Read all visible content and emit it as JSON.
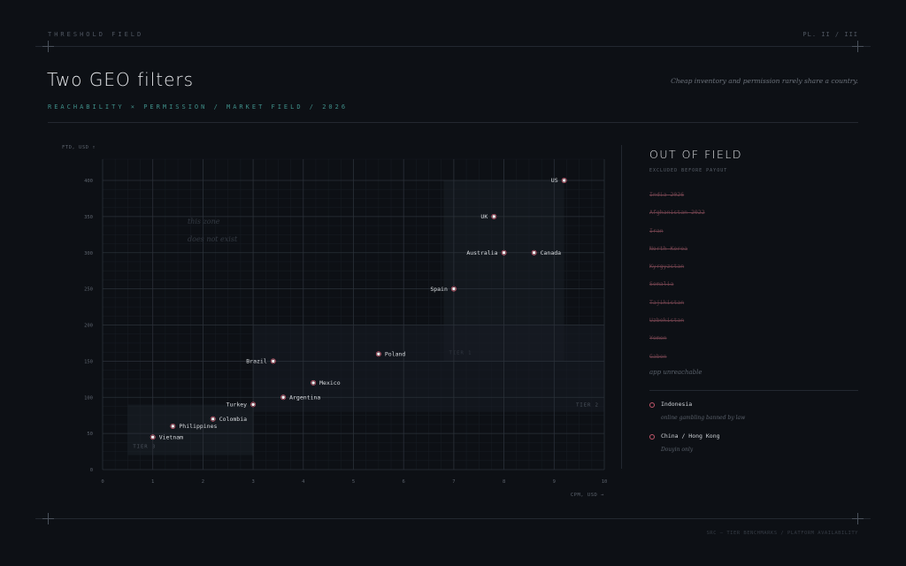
{
  "header": {
    "label": "THRESHOLD FIELD",
    "plate": "PL. II / III",
    "title": "Two GEO filters",
    "subtitle": "REACHABILITY × PERMISSION / MARKET FIELD / 2026",
    "tagline": "Cheap inventory and permission rarely share a country."
  },
  "footer": {
    "credit": "SRC — TIER BENCHMARKS / PLATFORM AVAILABILITY"
  },
  "sidebar": {
    "title": "OUT OF FIELD",
    "subtitle": "EXCLUDED BEFORE PAYOUT",
    "excluded": [
      "India 2026",
      "Afghanistan 2022",
      "Iran",
      "North Korea",
      "Kyrgyzstan",
      "Somalia",
      "Tajikistan",
      "Uzbekistan",
      "Yemen",
      "Gabon"
    ],
    "unreachable_label": "app unreachable",
    "partial": [
      {
        "country": "Indonesia",
        "note": "online gambling banned by law"
      },
      {
        "country": "China / Hong Kong",
        "note": "Douyin only"
      }
    ]
  },
  "chart_data": {
    "type": "scatter",
    "xlabel": "CPM, USD →",
    "ylabel": "FTD, USD ↑",
    "xlim": [
      0,
      10
    ],
    "ylim": [
      0,
      400
    ],
    "xticks": [
      0,
      1,
      2,
      3,
      4,
      5,
      6,
      7,
      8,
      9,
      10
    ],
    "yticks": [
      0,
      50,
      100,
      150,
      200,
      250,
      300,
      350,
      400
    ],
    "grid": true,
    "points": [
      {
        "label": "US",
        "x": 9.2,
        "y": 400
      },
      {
        "label": "UK",
        "x": 7.8,
        "y": 350
      },
      {
        "label": "Australia",
        "x": 8.0,
        "y": 300
      },
      {
        "label": "Canada",
        "x": 8.6,
        "y": 300
      },
      {
        "label": "Spain",
        "x": 7.0,
        "y": 250
      },
      {
        "label": "Poland",
        "x": 5.5,
        "y": 160
      },
      {
        "label": "Brazil",
        "x": 3.4,
        "y": 150
      },
      {
        "label": "Mexico",
        "x": 4.2,
        "y": 120
      },
      {
        "label": "Argentina",
        "x": 3.6,
        "y": 100
      },
      {
        "label": "Turkey",
        "x": 3.0,
        "y": 90
      },
      {
        "label": "Colombia",
        "x": 2.2,
        "y": 70
      },
      {
        "label": "Philippines",
        "x": 1.4,
        "y": 60
      },
      {
        "label": "Vietnam",
        "x": 1.0,
        "y": 45
      }
    ],
    "zones": [
      {
        "label": "TIER 1",
        "x": [
          6.8,
          9.2
        ],
        "y": [
          150,
          400
        ]
      },
      {
        "label": "TIER 2",
        "x": [
          3.0,
          10.0
        ],
        "y": [
          80,
          200
        ]
      },
      {
        "label": "TIER 3",
        "x": [
          0.5,
          3.0
        ],
        "y": [
          20,
          90
        ]
      }
    ],
    "annotation": "this zone does not exist"
  }
}
